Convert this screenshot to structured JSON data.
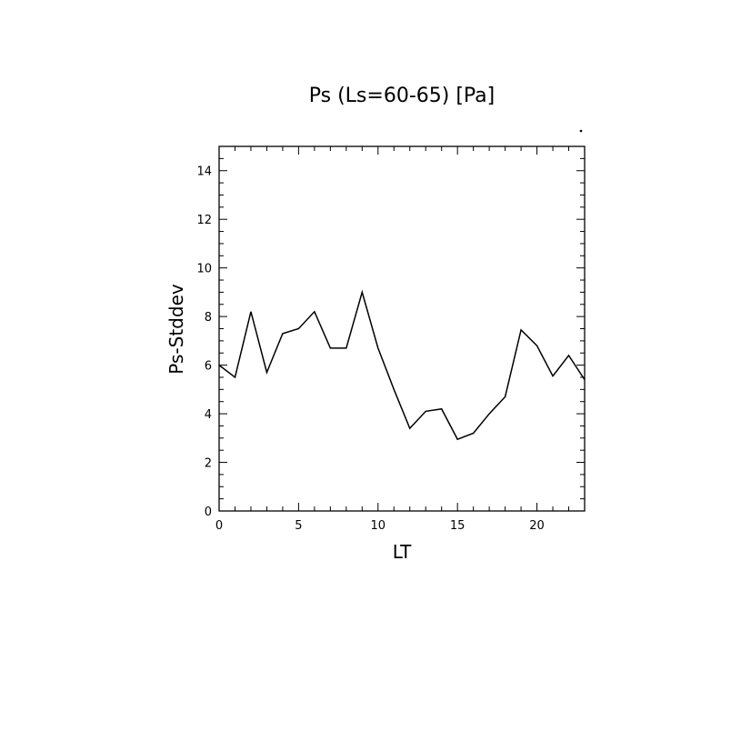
{
  "chart_data": {
    "type": "line",
    "title": "Ps (Ls=60-65) [Pa]",
    "xlabel": "LT",
    "ylabel": "Ps-Stddev",
    "xlim": [
      0,
      23
    ],
    "ylim": [
      0,
      15
    ],
    "x_ticks": [
      0,
      5,
      10,
      15,
      20
    ],
    "y_ticks": [
      0,
      2,
      4,
      6,
      8,
      10,
      12,
      14
    ],
    "x_tick_labels": [
      "0",
      "5",
      "10",
      "15",
      "20"
    ],
    "y_tick_labels": [
      "0",
      "2",
      "4",
      "6",
      "8",
      "10",
      "12",
      "14"
    ],
    "grid": false,
    "series": [
      {
        "x": [
          0,
          1,
          2,
          3,
          4,
          5,
          6,
          7,
          8,
          9,
          10,
          11,
          12,
          13,
          14,
          15,
          16,
          17,
          18,
          19,
          20,
          21,
          22,
          23
        ],
        "values": [
          6.0,
          5.5,
          8.2,
          5.7,
          7.3,
          7.5,
          8.2,
          6.7,
          6.7,
          9.0,
          6.7,
          5.0,
          3.4,
          4.1,
          4.2,
          2.95,
          3.2,
          4.0,
          4.7,
          7.45,
          6.8,
          5.55,
          6.4,
          5.4
        ],
        "color": "#000000"
      }
    ]
  }
}
